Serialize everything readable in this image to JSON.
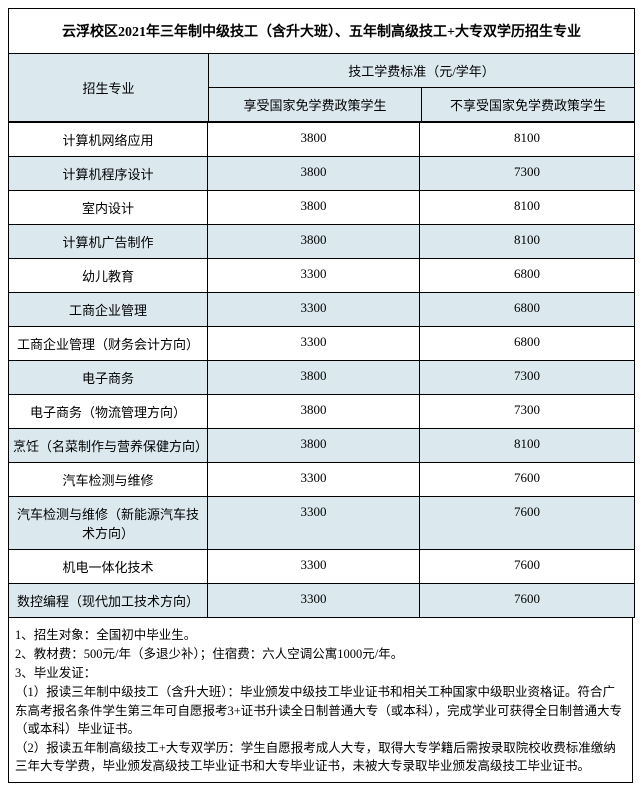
{
  "title": "云浮校区2021年三年制中级技工（含升大班）、五年制高级技工+大专双学历招生专业",
  "header": {
    "major": "招生专业",
    "fee_group": "技工学费标准（元/学年）",
    "fee1": "享受国家免学费政策学生",
    "fee2": "不享受国家免学费政策学生"
  },
  "rows": [
    {
      "major": "计算机网络应用",
      "fee1": "3800",
      "fee2": "8100"
    },
    {
      "major": "计算机程序设计",
      "fee1": "3800",
      "fee2": "7300"
    },
    {
      "major": "室内设计",
      "fee1": "3800",
      "fee2": "8100"
    },
    {
      "major": "计算机广告制作",
      "fee1": "3800",
      "fee2": "8100"
    },
    {
      "major": "幼儿教育",
      "fee1": "3300",
      "fee2": "6800"
    },
    {
      "major": "工商企业管理",
      "fee1": "3300",
      "fee2": "6800"
    },
    {
      "major": "工商企业管理（财务会计方向）",
      "fee1": "3300",
      "fee2": "6800"
    },
    {
      "major": "电子商务",
      "fee1": "3800",
      "fee2": "7300"
    },
    {
      "major": "电子商务（物流管理方向）",
      "fee1": "3800",
      "fee2": "7300"
    },
    {
      "major": "烹饪（名菜制作与营养保健方向）",
      "fee1": "3800",
      "fee2": "8100"
    },
    {
      "major": "汽车检测与维修",
      "fee1": "3300",
      "fee2": "7600"
    },
    {
      "major": "汽车检测与维修（新能源汽车技术方向）",
      "fee1": "3300",
      "fee2": "7600"
    },
    {
      "major": "机电一体化技术",
      "fee1": "3300",
      "fee2": "7600"
    },
    {
      "major": "数控编程（现代加工技术方向）",
      "fee1": "3300",
      "fee2": "7600"
    }
  ],
  "notes": [
    "1、招生对象：全国初中毕业生。",
    "2、教材费：500元/年（多退少补）；住宿费：六人空调公寓1000元/年。",
    "3、毕业发证：",
    "（1）报读三年制中级技工（含升大班）：毕业颁发中级技工毕业证书和相关工种国家中级职业资格证。符合广东高考报名条件学生第三年可自愿报考3+证书升读全日制普通大专（或本科），完成学业可获得全日制普通大专（或本科）毕业证书。",
    "（2）报读五年制高级技工+大专双学历：学生自愿报考成人大专，取得大专学籍后需按录取院校收费标准缴纳三年大专学费，毕业颁发高级技工毕业证书和大专毕业证书，未被大专录取毕业颁发高级技工毕业证书。"
  ],
  "style": {
    "alt_bg": "#dbe9ef",
    "border_color": "#000000",
    "text_color": "#000000",
    "bg_color": "#ffffff"
  }
}
